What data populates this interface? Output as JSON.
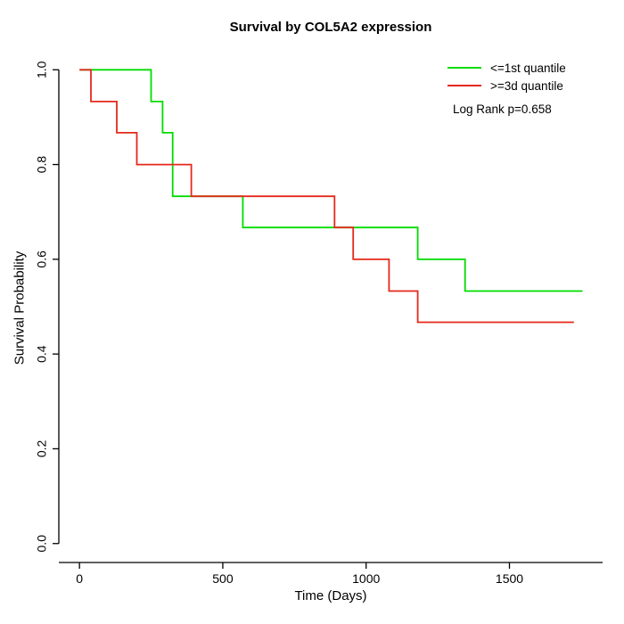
{
  "chart_data": {
    "type": "line",
    "subtype": "kaplan-meier-step",
    "title": "Survival by COL5A2 expression",
    "xlabel": "Time (Days)",
    "ylabel": "Survival Probability",
    "x_ticks": [
      "0",
      "500",
      "1000",
      "1500"
    ],
    "y_ticks": [
      "0.0",
      "0.2",
      "0.4",
      "0.6",
      "0.8",
      "1.0"
    ],
    "xlim": [
      -72,
      1825
    ],
    "ylim": [
      -0.04,
      1.04
    ],
    "grid": false,
    "legend_position": "top-right",
    "annotation": "Log Rank p=0.658",
    "axis_color": "#000000",
    "series": [
      {
        "name": "<=1st quantile",
        "color": "#00dc00",
        "steps": [
          [
            0,
            1.0
          ],
          [
            250,
            0.933
          ],
          [
            290,
            0.867
          ],
          [
            325,
            0.733
          ],
          [
            570,
            0.667
          ],
          [
            1175,
            0.667
          ],
          [
            1180,
            0.6
          ],
          [
            1345,
            0.533
          ]
        ],
        "end": 1755
      },
      {
        "name": ">=3d quantile",
        "color": "#e4291b",
        "steps": [
          [
            0,
            1.0
          ],
          [
            40,
            0.933
          ],
          [
            130,
            0.867
          ],
          [
            200,
            0.8
          ],
          [
            390,
            0.733
          ],
          [
            890,
            0.667
          ],
          [
            955,
            0.6
          ],
          [
            1080,
            0.533
          ],
          [
            1180,
            0.467
          ]
        ],
        "end": 1725
      }
    ]
  }
}
